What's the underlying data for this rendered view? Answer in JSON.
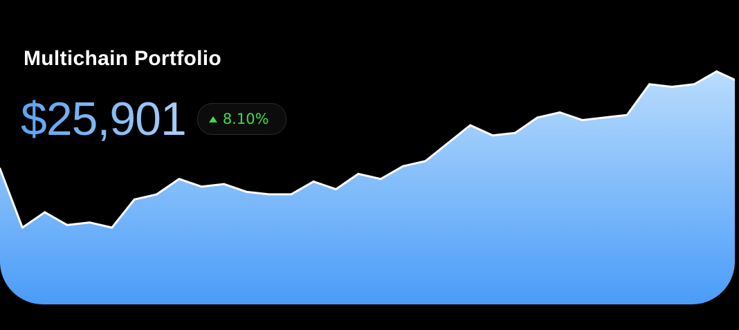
{
  "card": {
    "title": "Multichain Portfolio",
    "value": "$25,901",
    "change": "8.10%",
    "change_icon": "up-arrow-icon"
  },
  "colors": {
    "background": "#000000",
    "area_top": "#b9dcfd",
    "area_bottom": "#4a9cf8",
    "line": "#ffffff",
    "value_start": "#5aa4f2",
    "value_end": "#a9cff6",
    "positive": "#3ddc4f"
  },
  "chart_data": {
    "type": "area",
    "title": "",
    "xlabel": "",
    "ylabel": "",
    "grid": false,
    "legend": "none",
    "ylim": [
      0,
      100
    ],
    "values": [
      53,
      30,
      36,
      31,
      32,
      30,
      41,
      43,
      49,
      46,
      47,
      44,
      43,
      43,
      48,
      45,
      51,
      49,
      54,
      56,
      63,
      70,
      66,
      67,
      73,
      75,
      72,
      73,
      74,
      86,
      85,
      86,
      91,
      87
    ]
  }
}
